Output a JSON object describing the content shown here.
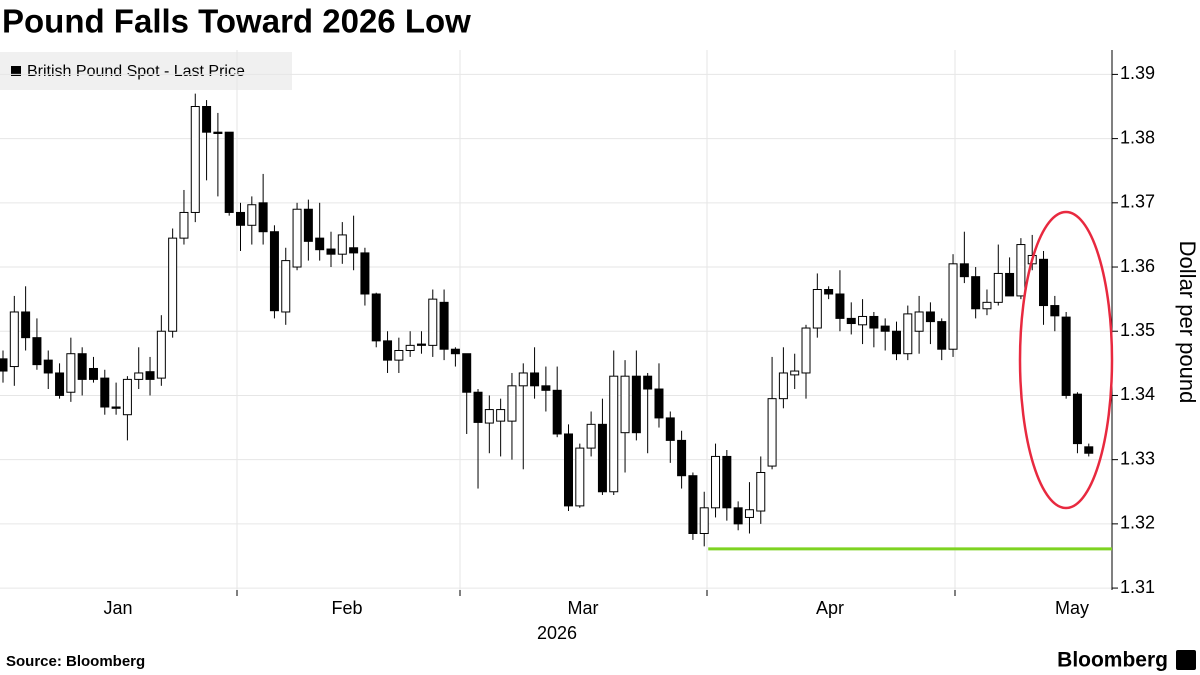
{
  "chart_data": {
    "type": "candlestick",
    "title": "Pound Falls Toward 2026 Low",
    "legend": "British Pound Spot - Last Price",
    "y_axis_label": "Dollar per pound",
    "x_labels": [
      "Jan",
      "Feb",
      "Mar",
      "Apr",
      "May"
    ],
    "year_label": "2026",
    "source": "Source: Bloomberg",
    "brand": "Bloomberg",
    "ylim": [
      1.3097,
      1.3938
    ],
    "yticks": [
      1.31,
      1.32,
      1.33,
      1.34,
      1.35,
      1.36,
      1.37,
      1.38,
      1.39
    ],
    "grid": true,
    "up_color": "#ffffff",
    "down_color": "#000000",
    "low_line": 1.3161,
    "low_line_color": "#7ed321",
    "highlight_color": "#e8293f",
    "open": [
      1.3457,
      1.3445,
      1.353,
      1.349,
      1.3455,
      1.3435,
      1.3405,
      1.3465,
      1.3442,
      1.3427,
      1.3382,
      1.337,
      1.3425,
      1.3437,
      1.3427,
      1.35,
      1.3645,
      1.3685,
      1.385,
      1.381,
      1.381,
      1.3685,
      1.3665,
      1.37,
      1.3655,
      1.353,
      1.36,
      1.369,
      1.3645,
      1.3628,
      1.362,
      1.363,
      1.3622,
      1.3558,
      1.3485,
      1.3455,
      1.347,
      1.348,
      1.3478,
      1.3545,
      1.3472,
      1.3465,
      1.3405,
      1.3357,
      1.336,
      1.336,
      1.3415,
      1.3435,
      1.3415,
      1.3408,
      1.334,
      1.3228,
      1.3318,
      1.3355,
      1.325,
      1.3342,
      1.343,
      1.343,
      1.341,
      1.3365,
      1.333,
      1.3275,
      1.3185,
      1.3225,
      1.3305,
      1.3225,
      1.321,
      1.322,
      1.329,
      1.3395,
      1.3432,
      1.3435,
      1.3505,
      1.3565,
      1.3558,
      1.352,
      1.351,
      1.3523,
      1.3508,
      1.35,
      1.3465,
      1.35,
      1.353,
      1.3515,
      1.3472,
      1.3605,
      1.3585,
      1.3535,
      1.3545,
      1.359,
      1.3555,
      1.3605,
      1.3612,
      1.354,
      1.3522,
      1.3402,
      1.332
    ],
    "high": [
      1.347,
      1.3555,
      1.357,
      1.352,
      1.347,
      1.345,
      1.349,
      1.3475,
      1.346,
      1.344,
      1.342,
      1.343,
      1.3475,
      1.346,
      1.3525,
      1.366,
      1.372,
      1.387,
      1.386,
      1.384,
      1.381,
      1.37,
      1.371,
      1.3745,
      1.3665,
      1.363,
      1.37,
      1.3705,
      1.37,
      1.3655,
      1.367,
      1.368,
      1.363,
      1.356,
      1.35,
      1.349,
      1.35,
      1.35,
      1.3565,
      1.3565,
      1.3475,
      1.3465,
      1.341,
      1.34,
      1.3395,
      1.3435,
      1.345,
      1.3475,
      1.3445,
      1.3445,
      1.3355,
      1.3325,
      1.3375,
      1.3395,
      1.347,
      1.3455,
      1.347,
      1.3435,
      1.345,
      1.3375,
      1.3345,
      1.328,
      1.325,
      1.3325,
      1.3315,
      1.3235,
      1.3265,
      1.3305,
      1.346,
      1.3475,
      1.3465,
      1.351,
      1.359,
      1.357,
      1.3595,
      1.3545,
      1.355,
      1.353,
      1.352,
      1.3515,
      1.354,
      1.3555,
      1.3545,
      1.352,
      1.362,
      1.3655,
      1.36,
      1.3565,
      1.3635,
      1.3615,
      1.3645,
      1.365,
      1.3625,
      1.3555,
      1.353,
      1.3405,
      1.3325
    ],
    "low": [
      1.342,
      1.3415,
      1.347,
      1.344,
      1.341,
      1.3395,
      1.339,
      1.34,
      1.342,
      1.337,
      1.337,
      1.333,
      1.341,
      1.34,
      1.3415,
      1.349,
      1.3635,
      1.367,
      1.3735,
      1.371,
      1.368,
      1.3625,
      1.3635,
      1.3635,
      1.352,
      1.351,
      1.3595,
      1.361,
      1.361,
      1.36,
      1.3605,
      1.3595,
      1.354,
      1.3475,
      1.3435,
      1.3435,
      1.346,
      1.3465,
      1.346,
      1.3455,
      1.3445,
      1.334,
      1.3255,
      1.331,
      1.3305,
      1.33,
      1.3285,
      1.3395,
      1.3375,
      1.3335,
      1.322,
      1.3225,
      1.3305,
      1.3245,
      1.3245,
      1.328,
      1.333,
      1.331,
      1.335,
      1.3295,
      1.3255,
      1.3175,
      1.3165,
      1.321,
      1.3205,
      1.319,
      1.3185,
      1.32,
      1.3285,
      1.338,
      1.341,
      1.3395,
      1.349,
      1.355,
      1.35,
      1.3495,
      1.348,
      1.3475,
      1.347,
      1.3455,
      1.3455,
      1.3465,
      1.348,
      1.3455,
      1.346,
      1.3575,
      1.352,
      1.3525,
      1.354,
      1.3555,
      1.355,
      1.3595,
      1.351,
      1.35,
      1.3395,
      1.331,
      1.3305
    ],
    "close": [
      1.3438,
      1.353,
      1.349,
      1.3448,
      1.3435,
      1.34,
      1.3465,
      1.3425,
      1.3425,
      1.3382,
      1.338,
      1.3425,
      1.3435,
      1.3425,
      1.35,
      1.3645,
      1.3685,
      1.385,
      1.381,
      1.3808,
      1.3685,
      1.3665,
      1.3697,
      1.3655,
      1.3532,
      1.361,
      1.369,
      1.364,
      1.3627,
      1.362,
      1.365,
      1.3622,
      1.3558,
      1.3485,
      1.3455,
      1.347,
      1.3478,
      1.3478,
      1.355,
      1.3472,
      1.3465,
      1.3405,
      1.3358,
      1.3378,
      1.3378,
      1.3415,
      1.3435,
      1.3415,
      1.3408,
      1.334,
      1.3228,
      1.3318,
      1.3355,
      1.325,
      1.343,
      1.343,
      1.3342,
      1.341,
      1.3365,
      1.333,
      1.3275,
      1.3185,
      1.3225,
      1.3305,
      1.3225,
      1.32,
      1.3222,
      1.328,
      1.3395,
      1.3435,
      1.3438,
      1.3505,
      1.3565,
      1.3558,
      1.352,
      1.3512,
      1.3523,
      1.3505,
      1.35,
      1.3465,
      1.3527,
      1.353,
      1.3515,
      1.3472,
      1.3605,
      1.3585,
      1.3535,
      1.3545,
      1.359,
      1.3555,
      1.3635,
      1.3618,
      1.354,
      1.3524,
      1.34,
      1.3325,
      1.331
    ]
  }
}
